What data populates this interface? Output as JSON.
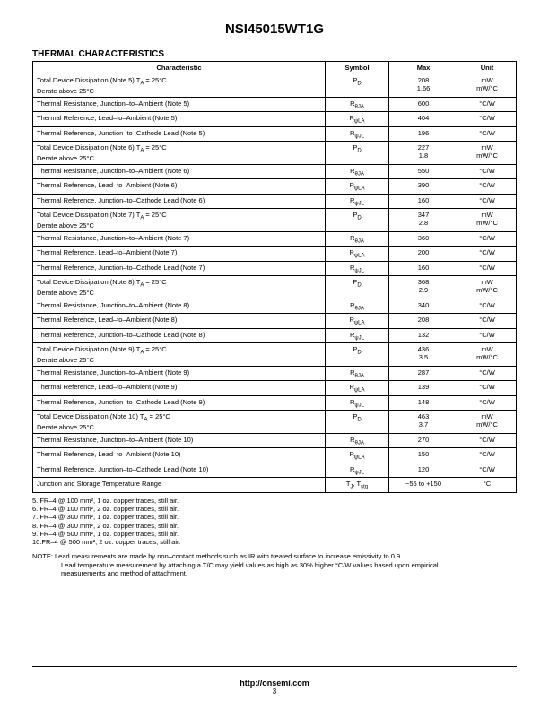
{
  "header": {
    "part_number": "NSI45015WT1G"
  },
  "section": {
    "title": "THERMAL CHARACTERISTICS"
  },
  "table": {
    "columns": {
      "characteristic": "Characteristic",
      "symbol": "Symbol",
      "max": "Max",
      "unit": "Unit"
    },
    "rows": [
      {
        "char1": "Total Device Dissipation (Note 5) T_A = 25°C",
        "char2": "Derate above 25°C",
        "symbol": "P_D",
        "max": "208\n1.66",
        "unit": "mW\nmW/°C"
      },
      {
        "char1": "Thermal Resistance, Junction–to–Ambient (Note 5)",
        "symbol": "R_θJA",
        "max": "600",
        "unit": "°C/W"
      },
      {
        "char1": "Thermal Reference, Lead–to–Ambient (Note 5)",
        "symbol": "R_ψLA",
        "max": "404",
        "unit": "°C/W"
      },
      {
        "char1": "Thermal Reference, Junction–to–Cathode Lead (Note 5)",
        "symbol": "R_ψJL",
        "max": "196",
        "unit": "°C/W"
      },
      {
        "char1": "Total Device Dissipation (Note 6) T_A = 25°C",
        "char2": "Derate above 25°C",
        "symbol": "P_D",
        "max": "227\n1.8",
        "unit": "mW\nmW/°C"
      },
      {
        "char1": "Thermal Resistance, Junction–to–Ambient (Note 6)",
        "symbol": "R_θJA",
        "max": "550",
        "unit": "°C/W"
      },
      {
        "char1": "Thermal Reference, Lead–to–Ambient (Note 6)",
        "symbol": "R_ψLA",
        "max": "390",
        "unit": "°C/W"
      },
      {
        "char1": "Thermal Reference, Junction–to–Cathode Lead (Note 6)",
        "symbol": "R_ψJL",
        "max": "160",
        "unit": "°C/W"
      },
      {
        "char1": "Total Device Dissipation (Note 7) T_A = 25°C",
        "char2": "Derate above 25°C",
        "symbol": "P_D",
        "max": "347\n2.8",
        "unit": "mW\nmW/°C"
      },
      {
        "char1": "Thermal Resistance, Junction–to–Ambient (Note 7)",
        "symbol": "R_θJA",
        "max": "360",
        "unit": "°C/W"
      },
      {
        "char1": "Thermal Reference, Lead–to–Ambient (Note 7)",
        "symbol": "R_ψLA",
        "max": "200",
        "unit": "°C/W"
      },
      {
        "char1": "Thermal Reference, Junction–to–Cathode Lead (Note 7)",
        "symbol": "R_ψJL",
        "max": "160",
        "unit": "°C/W"
      },
      {
        "char1": "Total Device Dissipation (Note 8) T_A = 25°C",
        "char2": "Derate above 25°C",
        "symbol": "P_D",
        "max": "368\n2.9",
        "unit": "mW\nmW/°C"
      },
      {
        "char1": "Thermal Resistance, Junction–to–Ambient (Note 8)",
        "symbol": "R_θJA",
        "max": "340",
        "unit": "°C/W"
      },
      {
        "char1": "Thermal Reference, Lead–to–Ambient (Note 8)",
        "symbol": "R_ψLA",
        "max": "208",
        "unit": "°C/W"
      },
      {
        "char1": "Thermal Reference, Junction–to–Cathode Lead (Note 8)",
        "symbol": "R_ψJL",
        "max": "132",
        "unit": "°C/W"
      },
      {
        "char1": "Total Device Dissipation (Note 9) T_A = 25°C",
        "char2": "Derate above 25°C",
        "symbol": "P_D",
        "max": "436\n3.5",
        "unit": "mW\nmW/°C"
      },
      {
        "char1": "Thermal Resistance, Junction–to–Ambient (Note 9)",
        "symbol": "R_θJA",
        "max": "287",
        "unit": "°C/W"
      },
      {
        "char1": "Thermal Reference, Lead–to–Ambient (Note 9)",
        "symbol": "R_ψLA",
        "max": "139",
        "unit": "°C/W"
      },
      {
        "char1": "Thermal Reference, Junction–to–Cathode Lead (Note 9)",
        "symbol": "R_ψJL",
        "max": "148",
        "unit": "°C/W"
      },
      {
        "char1": "Total Device Dissipation (Note 10) T_A = 25°C",
        "char2": "Derate above 25°C",
        "symbol": "P_D",
        "max": "463\n3.7",
        "unit": "mW\nmW/°C"
      },
      {
        "char1": "Thermal Resistance, Junction–to–Ambient (Note 10)",
        "symbol": "R_θJA",
        "max": "270",
        "unit": "°C/W"
      },
      {
        "char1": "Thermal Reference, Lead–to–Ambient (Note 10)",
        "symbol": "R_ψLA",
        "max": "150",
        "unit": "°C/W"
      },
      {
        "char1": "Thermal Reference, Junction–to–Cathode Lead (Note 10)",
        "symbol": "R_ψJL",
        "max": "120",
        "unit": "°C/W"
      },
      {
        "char1": "Junction and Storage Temperature Range",
        "symbol": "T_J, T_stg",
        "max": "−55 to +150",
        "unit": "°C"
      }
    ]
  },
  "footnotes": [
    "5.  FR–4 @ 100 mm², 1 oz. copper traces, still air.",
    "6.  FR–4 @ 100 mm², 2 oz. copper traces, still air.",
    "7.  FR–4 @ 300 mm², 1 oz. copper traces, still air.",
    "8.  FR–4 @ 300 mm², 2 oz. copper traces, still air.",
    "9.  FR–4 @ 500 mm², 1 oz. copper traces, still air.",
    "10.FR–4 @ 500 mm², 2 oz. copper traces, still air."
  ],
  "note": {
    "label": "NOTE: ",
    "line1": "Lead measurements are made by non–contact methods such as IR with treated surface to increase emissivity to 0.9.",
    "line2": "Lead temperature measurement by attaching a T/C may yield values as high as 30% higher °C/W values based upon empirical",
    "line3": "measurements and method of attachment."
  },
  "footer": {
    "url": "http://onsemi.com",
    "page": "3"
  }
}
